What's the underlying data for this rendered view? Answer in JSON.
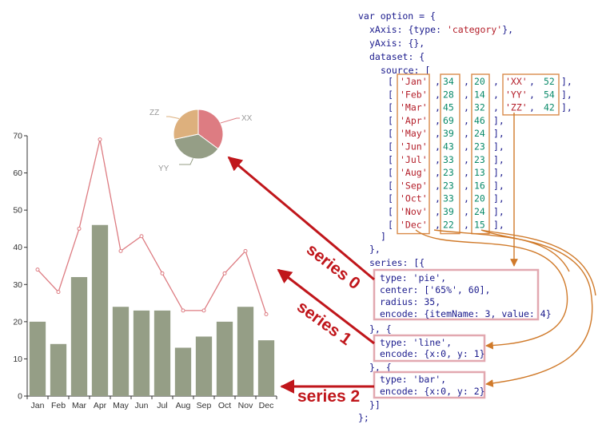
{
  "colors": {
    "bar": "#959e86",
    "line": "#dd7c82",
    "pie": [
      "#dd7c82",
      "#959e86",
      "#ddb07d"
    ],
    "arrow_red": "#c0161b",
    "arrow_orange": "#d07a2a",
    "code_key": "#1a1a8c",
    "code_string": "#b31d28",
    "code_number": "#0a8a6a"
  },
  "chart_data": [
    {
      "type": "bar",
      "categories": [
        "Jan",
        "Feb",
        "Mar",
        "Apr",
        "May",
        "Jun",
        "Jul",
        "Aug",
        "Sep",
        "Oct",
        "Nov",
        "Dec"
      ],
      "values": [
        20,
        14,
        32,
        46,
        24,
        23,
        23,
        13,
        16,
        20,
        24,
        15
      ],
      "ylim": [
        0,
        70
      ],
      "yticks": [
        "0",
        "10",
        "20",
        "30",
        "40",
        "50",
        "60",
        "70"
      ],
      "grid": false
    },
    {
      "type": "line",
      "categories": [
        "Jan",
        "Feb",
        "Mar",
        "Apr",
        "May",
        "Jun",
        "Jul",
        "Aug",
        "Sep",
        "Oct",
        "Nov",
        "Dec"
      ],
      "values": [
        34,
        28,
        45,
        69,
        39,
        43,
        33,
        23,
        23,
        33,
        39,
        22
      ],
      "ylim": [
        0,
        70
      ]
    },
    {
      "type": "pie",
      "labels": [
        "XX",
        "YY",
        "ZZ"
      ],
      "values": [
        52,
        54,
        42
      ]
    }
  ],
  "series_labels": [
    "series 0",
    "series 1",
    "series 2"
  ],
  "code": {
    "line_var": "var option = {",
    "line_xaxis_key": "xAxis: {type: ",
    "line_xaxis_val": "'category'",
    "line_xaxis_end": "},",
    "line_yaxis": "yAxis: {},",
    "line_dataset": "dataset: {",
    "line_source": "source: [",
    "rows": [
      {
        "month": "'Jan'",
        "a": "34",
        "b": "20",
        "name": "'XX'",
        "value": "52"
      },
      {
        "month": "'Feb'",
        "a": "28",
        "b": "14",
        "name": "'YY'",
        "value": "54"
      },
      {
        "month": "'Mar'",
        "a": "45",
        "b": "32",
        "name": "'ZZ'",
        "value": "42"
      },
      {
        "month": "'Apr'",
        "a": "69",
        "b": "46"
      },
      {
        "month": "'May'",
        "a": "39",
        "b": "24"
      },
      {
        "month": "'Jun'",
        "a": "43",
        "b": "23"
      },
      {
        "month": "'Jul'",
        "a": "33",
        "b": "23"
      },
      {
        "month": "'Aug'",
        "a": "23",
        "b": "13"
      },
      {
        "month": "'Sep'",
        "a": "23",
        "b": "16"
      },
      {
        "month": "'Oct'",
        "a": "33",
        "b": "20"
      },
      {
        "month": "'Nov'",
        "a": "39",
        "b": "24"
      },
      {
        "month": "'Dec'",
        "a": "22",
        "b": "15"
      }
    ],
    "line_source_end": "]",
    "line_dataset_end": "},",
    "line_series": "series: [{",
    "pie_block": [
      "type: 'pie',",
      "center: ['65%', 60],",
      "radius: 35,",
      "encode: {itemName: 3, value: 4}"
    ],
    "sep1": "}, {",
    "line_block": [
      "type: 'line',",
      "encode: {x:0, y: 1}"
    ],
    "sep2": "}, {",
    "bar_block": [
      "type: 'bar',",
      "encode: {x:0, y: 2}"
    ],
    "line_series_end": "}]",
    "line_end": "};"
  }
}
